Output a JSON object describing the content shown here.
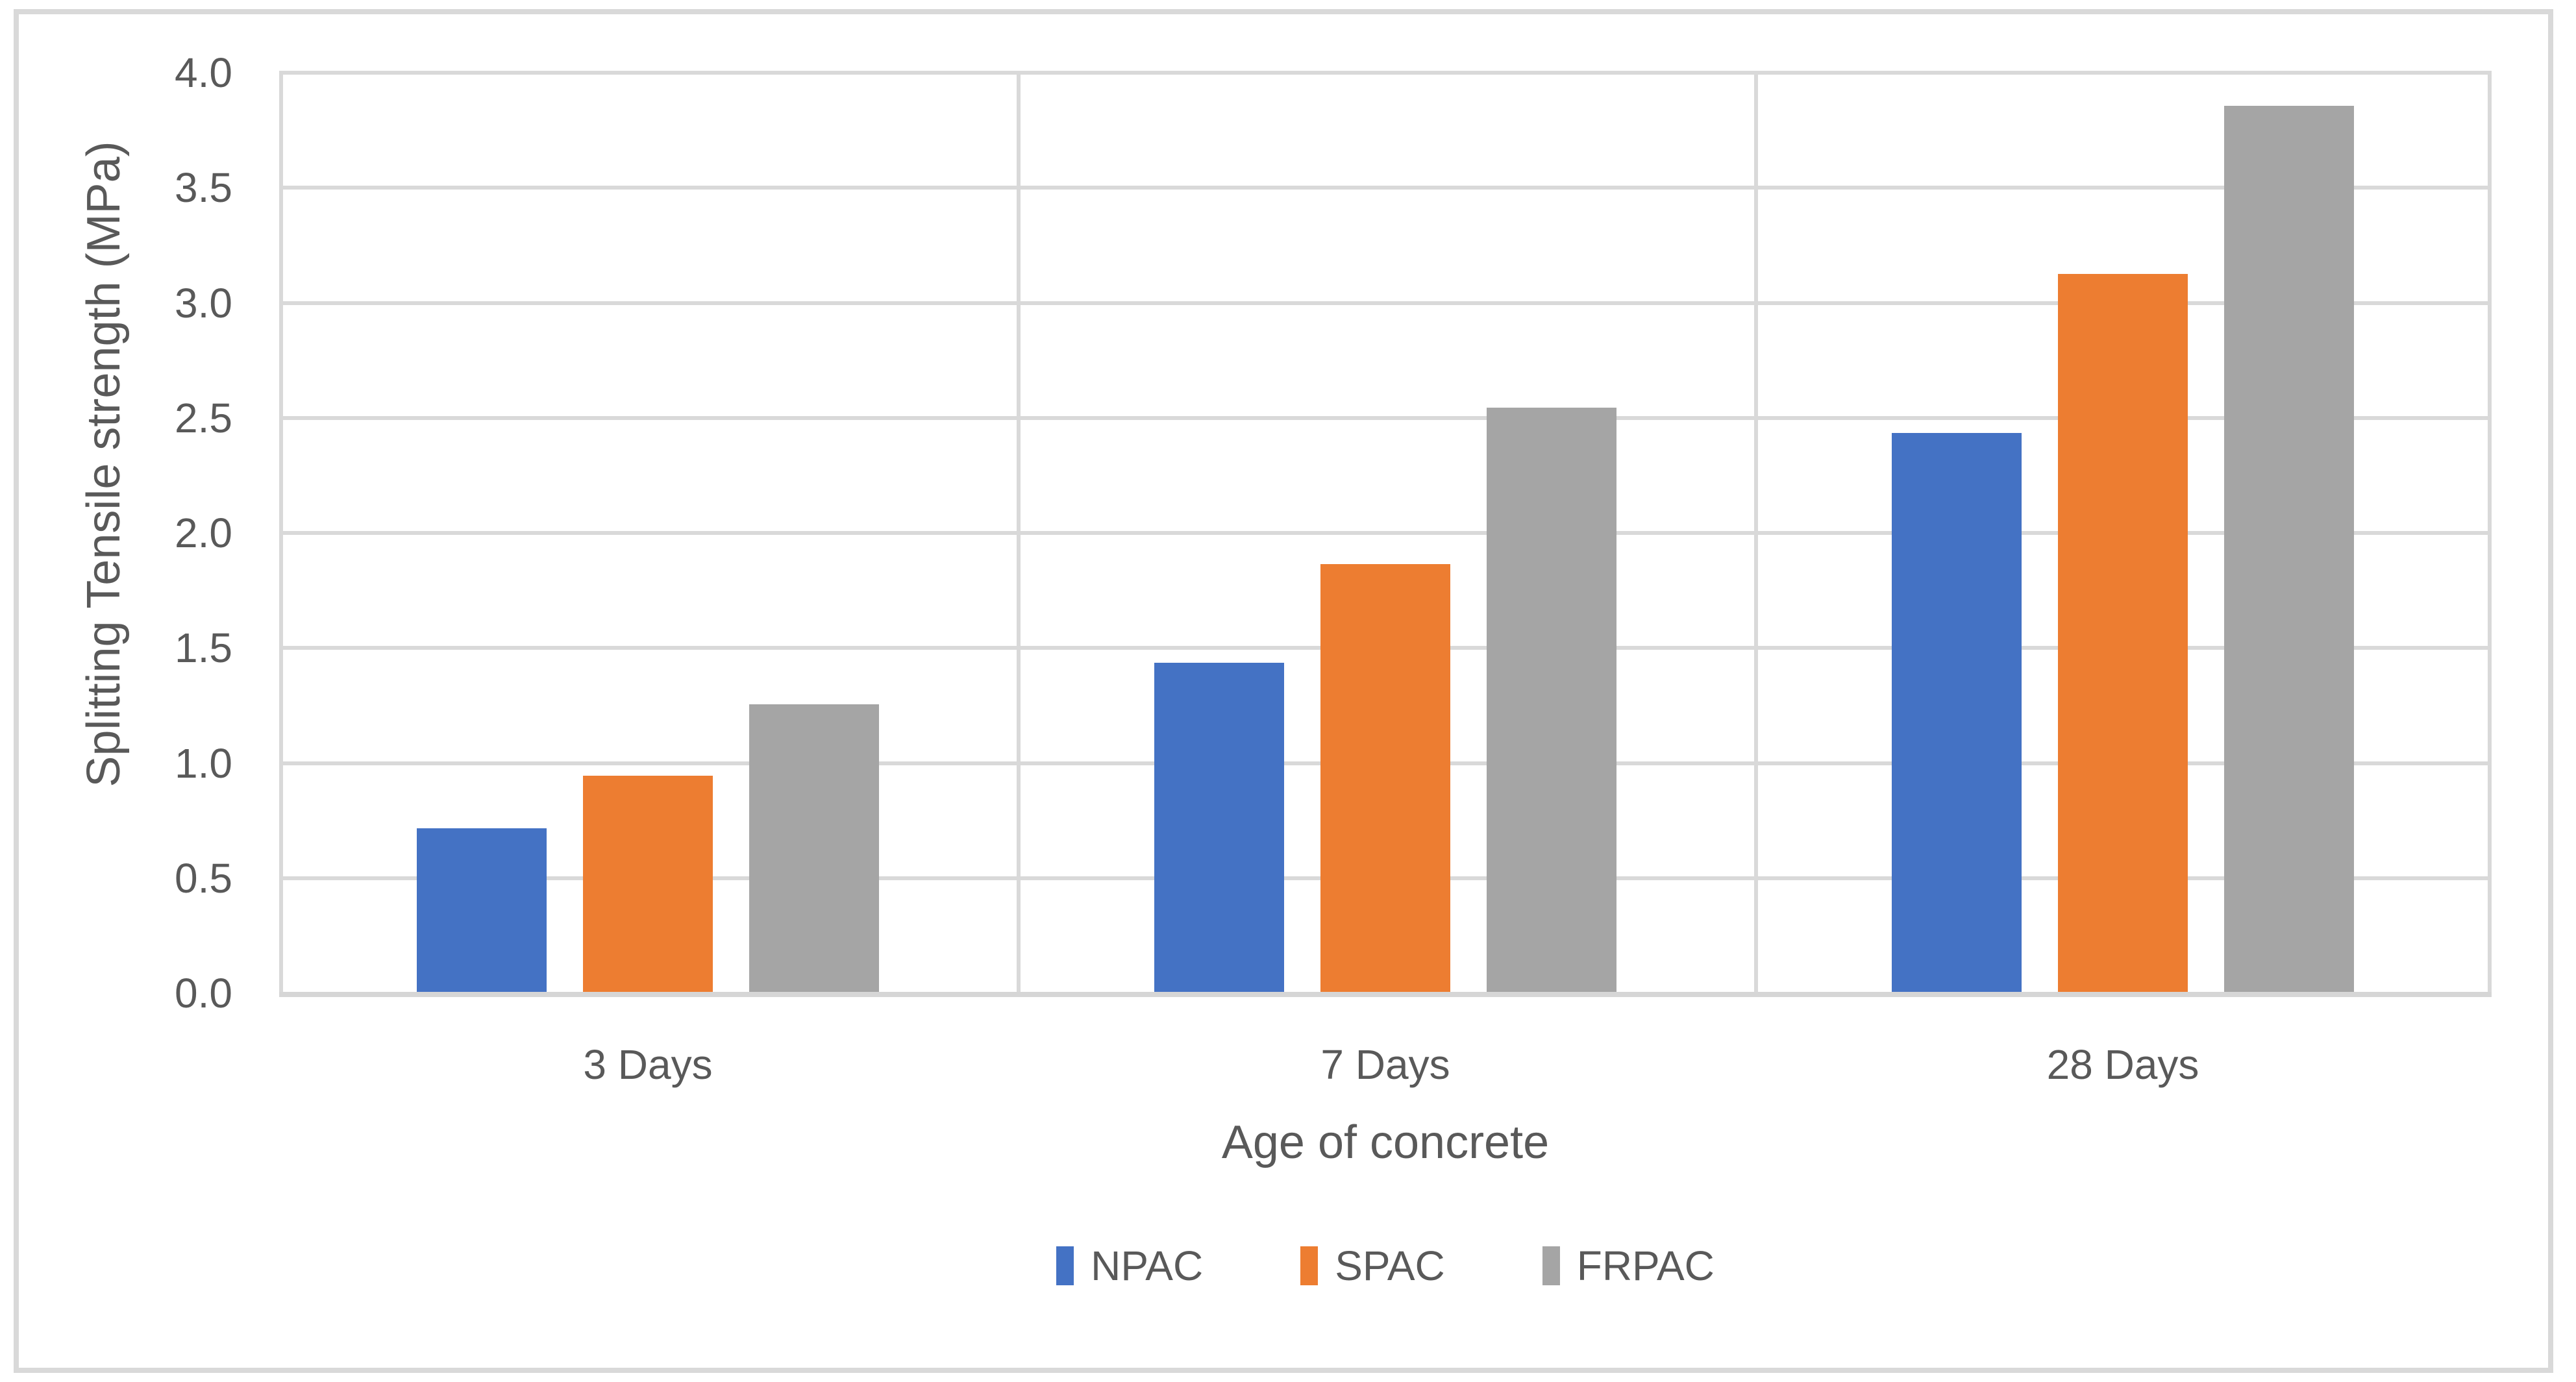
{
  "chart_data": {
    "type": "bar",
    "categories": [
      "3 Days",
      "7 Days",
      "28 Days"
    ],
    "series": [
      {
        "name": "NPAC",
        "color": "#4472C4",
        "values": [
          0.71,
          1.43,
          2.43
        ]
      },
      {
        "name": "SPAC",
        "color": "#ED7D31",
        "values": [
          0.94,
          1.86,
          3.12
        ]
      },
      {
        "name": "FRPAC",
        "color": "#A5A5A5",
        "values": [
          1.25,
          2.54,
          3.85
        ]
      }
    ],
    "title": "",
    "xlabel": "Age of concrete",
    "ylabel": "Splitting Tensile strength (MPa)",
    "ylim": [
      0.0,
      4.0
    ],
    "ytick_step": 0.5,
    "ytick_labels": [
      "0.0",
      "0.5",
      "1.0",
      "1.5",
      "2.0",
      "2.5",
      "3.0",
      "3.5",
      "4.0"
    ],
    "grid": true,
    "vertical_category_gridlines": true,
    "legend_position": "bottom"
  },
  "colors": {
    "background": "#FFFFFF",
    "text": "#595959",
    "gridline": "#D9D9D9",
    "axis_line": "#D6D6D6",
    "frame_border": "#D9D9D9"
  }
}
